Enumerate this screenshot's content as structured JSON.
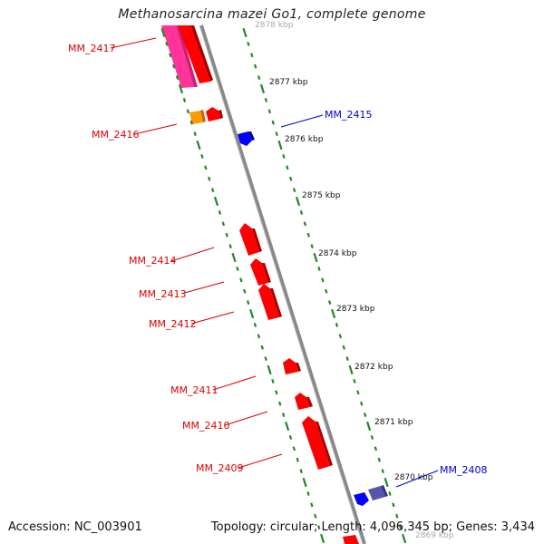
{
  "title": "Methanosarcina mazei Go1, complete genome",
  "footer": {
    "accession": "Accession: NC_003901",
    "summary": "Topology: circular; Length: 4,096,345 bp; Genes: 3,434"
  },
  "colors": {
    "forward_gene": "#ff0000",
    "reverse_gene": "#0000ff",
    "pink_feature": "#ff3399",
    "orange_feature": "#ff9900",
    "purple_feature": "#5555aa",
    "backbone": "#888888",
    "tick_marks": "#228822",
    "label_forward": "#dd0000",
    "label_reverse": "#0000cc"
  },
  "scale_labels": [
    "2878 kbp",
    "2877 kbp",
    "2876 kbp",
    "2875 kbp",
    "2874 kbp",
    "2873 kbp",
    "2872 kbp",
    "2871 kbp",
    "2870 kbp",
    "2869 kbp"
  ],
  "forward_genes": [
    {
      "label": "MM_2417"
    },
    {
      "label": "MM_2416"
    },
    {
      "label": "MM_2414"
    },
    {
      "label": "MM_2413"
    },
    {
      "label": "MM_2412"
    },
    {
      "label": "MM_2411"
    },
    {
      "label": "MM_2410"
    },
    {
      "label": "MM_2409"
    }
  ],
  "reverse_genes": [
    {
      "label": "MM_2415"
    },
    {
      "label": "MM_2408"
    }
  ]
}
